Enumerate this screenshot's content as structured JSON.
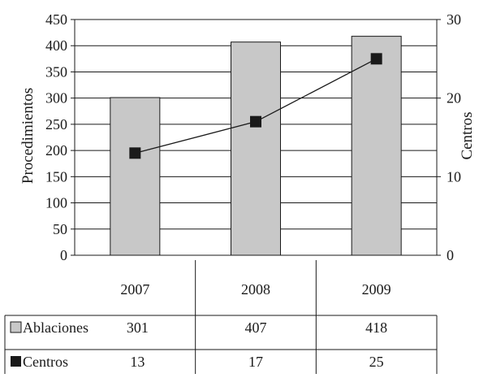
{
  "chart_data": {
    "type": "bar",
    "categories": [
      "2007",
      "2008",
      "2009"
    ],
    "series": [
      {
        "name": "Ablaciones",
        "type": "bar",
        "axis": "left",
        "values": [
          301,
          407,
          418
        ]
      },
      {
        "name": "Centros",
        "type": "line",
        "axis": "right",
        "values": [
          13,
          17,
          25
        ]
      }
    ],
    "ylabel_left": "Procedimientos",
    "ylabel_right": "Centros",
    "ylim_left": [
      0,
      450
    ],
    "ylim_right": [
      0,
      30
    ],
    "yticks_left": [
      "0",
      "50",
      "100",
      "150",
      "200",
      "250",
      "300",
      "350",
      "400",
      "450"
    ],
    "yticks_right": [
      "0",
      "10",
      "20",
      "30"
    ],
    "grid": true,
    "data_table": true,
    "colors": {
      "bar_fill": "#c8c8c8",
      "bar_stroke": "#1a1a1a",
      "line": "#1a1a1a",
      "marker": "#1a1a1a"
    }
  }
}
